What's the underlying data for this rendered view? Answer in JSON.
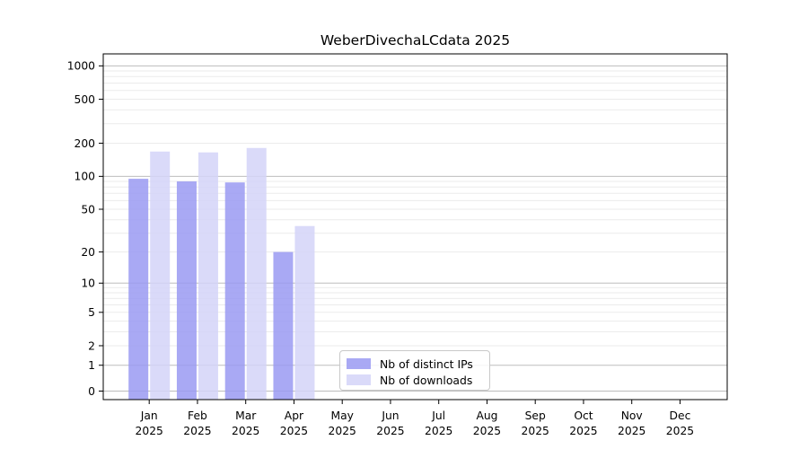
{
  "chart_data": {
    "type": "bar",
    "title": "WeberDivechaLCdata 2025",
    "year_label": "2025",
    "months": [
      "Jan",
      "Feb",
      "Mar",
      "Apr",
      "May",
      "Jun",
      "Jul",
      "Aug",
      "Sep",
      "Oct",
      "Nov",
      "Dec"
    ],
    "series": [
      {
        "name": "Nb of distinct IPs",
        "color": "#9a9af2",
        "values": [
          95,
          90,
          88,
          20,
          null,
          null,
          null,
          null,
          null,
          null,
          null,
          null
        ]
      },
      {
        "name": "Nb of downloads",
        "color": "#d3d3f8",
        "values": [
          168,
          165,
          181,
          35,
          null,
          null,
          null,
          null,
          null,
          null,
          null,
          null
        ]
      }
    ],
    "bar_opacity": 0.85,
    "y_ticks": [
      0,
      1,
      2,
      5,
      10,
      20,
      50,
      100,
      200,
      500,
      1000
    ],
    "y_scale": "log1p",
    "y_major_gridline_values": [
      0,
      1,
      10,
      100,
      1000
    ],
    "ylim": [
      0,
      1300
    ],
    "grid": "horizontal",
    "legend_position": "lower center",
    "colors": {
      "major_grid": "#bdbdbd",
      "minor_grid": "#ebebeb",
      "axis": "#000000",
      "background": "#ffffff"
    }
  }
}
